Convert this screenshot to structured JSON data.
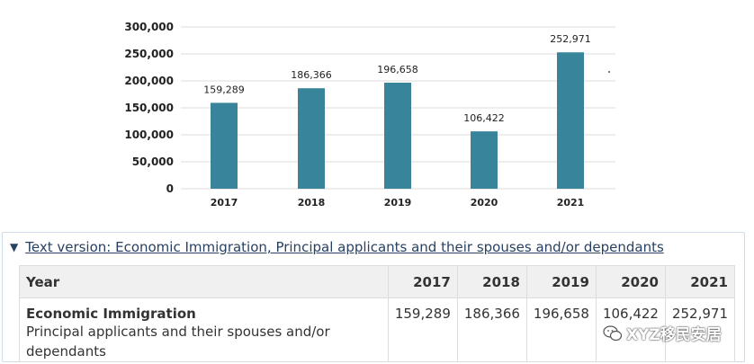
{
  "chart_data": {
    "type": "bar",
    "categories": [
      "2017",
      "2018",
      "2019",
      "2020",
      "2021"
    ],
    "values": [
      159289,
      186366,
      196658,
      106422,
      252971
    ],
    "value_labels": [
      "159,289",
      "186,366",
      "196,658",
      "106,422",
      "252,971"
    ],
    "ylim": [
      0,
      300000
    ],
    "yticks": [
      0,
      50000,
      100000,
      150000,
      200000,
      250000,
      300000
    ],
    "ytick_labels": [
      "0",
      "50,000",
      "100,000",
      "150,000",
      "200,000",
      "250,000",
      "300,000"
    ],
    "grid": true,
    "bar_color": "#38849b"
  },
  "details": {
    "summary": "Text version: Economic Immigration, Principal applicants and their spouses and/or dependants",
    "caret": "▼"
  },
  "table": {
    "header_label": "Year",
    "years": [
      "2017",
      "2018",
      "2019",
      "2020",
      "2021"
    ],
    "row": {
      "title": "Economic Immigration",
      "subtitle": "Principal applicants and their spouses and/or dependants",
      "values": [
        "159,289",
        "186,366",
        "196,658",
        "106,422",
        "252,971"
      ]
    }
  },
  "watermark": {
    "text": "XYZ移民安居",
    "icon": "wechat-icon"
  },
  "colors": {
    "link": "#284162",
    "bar": "#38849b",
    "grid": "#dddddd",
    "header_bg": "#f0f0f0"
  }
}
